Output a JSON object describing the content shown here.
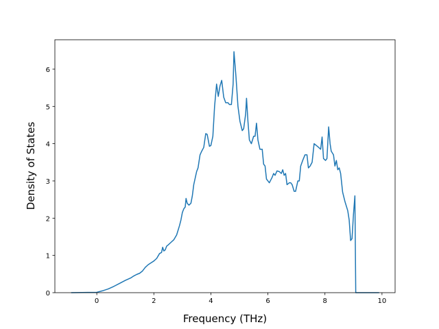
{
  "chart_data": {
    "type": "line",
    "x_label": "Frequency (THz)",
    "y_label": "Density of States",
    "color": "#1f77b4",
    "x": [
      -0.9,
      0,
      0.2,
      0.4,
      0.6,
      0.8,
      1.0,
      1.2,
      1.3,
      1.4,
      1.5,
      1.6,
      1.7,
      1.8,
      1.9,
      2.0,
      2.1,
      2.2,
      2.27,
      2.31,
      2.35,
      2.4,
      2.45,
      2.5,
      2.6,
      2.7,
      2.8,
      2.9,
      2.95,
      3.0,
      3.05,
      3.1,
      3.13,
      3.17,
      3.23,
      3.3,
      3.35,
      3.4,
      3.5,
      3.55,
      3.62,
      3.68,
      3.75,
      3.82,
      3.87,
      3.95,
      4.0,
      4.07,
      4.13,
      4.2,
      4.26,
      4.32,
      4.38,
      4.45,
      4.52,
      4.6,
      4.65,
      4.72,
      4.78,
      4.81,
      4.88,
      4.95,
      5.02,
      5.1,
      5.15,
      5.22,
      5.25,
      5.3,
      5.35,
      5.42,
      5.5,
      5.55,
      5.6,
      5.65,
      5.72,
      5.8,
      5.85,
      5.9,
      5.95,
      6.0,
      6.05,
      6.15,
      6.2,
      6.25,
      6.32,
      6.4,
      6.47,
      6.52,
      6.57,
      6.62,
      6.67,
      6.75,
      6.8,
      6.85,
      6.92,
      6.97,
      7.05,
      7.1,
      7.15,
      7.22,
      7.3,
      7.37,
      7.42,
      7.48,
      7.55,
      7.62,
      7.7,
      7.78,
      7.85,
      7.9,
      7.95,
      8.02,
      8.07,
      8.13,
      8.18,
      8.22,
      8.3,
      8.35,
      8.4,
      8.45,
      8.5,
      8.55,
      8.62,
      8.7,
      8.8,
      8.85,
      8.9,
      8.95,
      9.0,
      9.05,
      9.08,
      9.9
    ],
    "values": [
      0,
      0.01,
      0.05,
      0.1,
      0.17,
      0.25,
      0.33,
      0.4,
      0.45,
      0.49,
      0.52,
      0.58,
      0.68,
      0.75,
      0.8,
      0.85,
      0.92,
      1.05,
      1.08,
      1.22,
      1.12,
      1.15,
      1.25,
      1.28,
      1.35,
      1.42,
      1.55,
      1.8,
      1.95,
      2.15,
      2.25,
      2.3,
      2.53,
      2.4,
      2.35,
      2.4,
      2.6,
      2.9,
      3.25,
      3.35,
      3.7,
      3.8,
      3.9,
      4.27,
      4.25,
      3.93,
      3.95,
      4.2,
      5.0,
      5.6,
      5.27,
      5.55,
      5.7,
      5.25,
      5.1,
      5.1,
      5.05,
      5.05,
      5.6,
      6.47,
      5.8,
      5.0,
      4.6,
      4.35,
      4.4,
      4.8,
      5.22,
      4.6,
      4.1,
      4.0,
      4.2,
      4.2,
      4.55,
      4.1,
      3.85,
      3.85,
      3.45,
      3.4,
      3.05,
      3.0,
      2.95,
      3.1,
      3.2,
      3.15,
      3.27,
      3.25,
      3.2,
      3.3,
      3.15,
      3.2,
      2.9,
      2.95,
      2.95,
      2.9,
      2.72,
      2.72,
      3.0,
      3.0,
      3.4,
      3.55,
      3.7,
      3.7,
      3.35,
      3.4,
      3.5,
      4.0,
      3.95,
      3.9,
      3.85,
      4.18,
      3.6,
      3.55,
      3.6,
      4.45,
      4.0,
      3.8,
      3.7,
      3.4,
      3.55,
      3.3,
      3.35,
      3.2,
      2.7,
      2.45,
      2.2,
      1.95,
      1.4,
      1.45,
      2.1,
      2.6,
      0,
      0
    ],
    "xlim": [
      -1.47,
      10.46
    ],
    "ylim": [
      0,
      6.79
    ],
    "xticks": [
      0,
      2,
      4,
      6,
      8,
      10
    ],
    "yticks": [
      0,
      1,
      2,
      3,
      4,
      5,
      6
    ]
  }
}
